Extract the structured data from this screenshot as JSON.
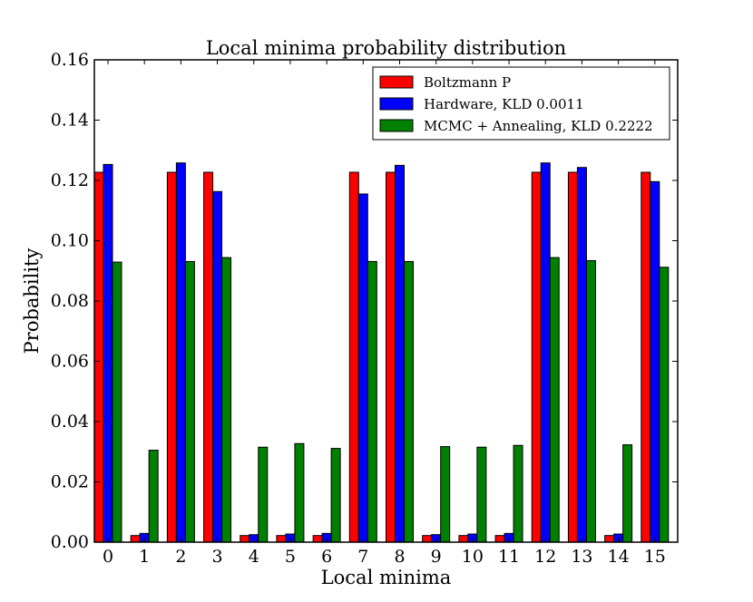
{
  "chart_data": {
    "type": "bar",
    "title": "Local minima probability distribution",
    "xlabel": "Local minima",
    "ylabel": "Probability",
    "ylim": [
      0,
      0.16
    ],
    "yticks": [
      "0.00",
      "0.02",
      "0.04",
      "0.06",
      "0.08",
      "0.10",
      "0.12",
      "0.14",
      "0.16"
    ],
    "categories": [
      "0",
      "1",
      "2",
      "3",
      "4",
      "5",
      "6",
      "7",
      "8",
      "9",
      "10",
      "11",
      "12",
      "13",
      "14",
      "15"
    ],
    "legend_position": "top-right",
    "series": [
      {
        "name": "Boltzmann P",
        "color": "#ff0000",
        "values": [
          0.1227,
          0.0022,
          0.1227,
          0.1227,
          0.0022,
          0.0022,
          0.0022,
          0.1227,
          0.1227,
          0.0022,
          0.0022,
          0.0022,
          0.1227,
          0.1227,
          0.0022,
          0.1227
        ]
      },
      {
        "name": "Hardware, KLD 0.0011",
        "color": "#0000ff",
        "values": [
          0.1253,
          0.0029,
          0.1258,
          0.1163,
          0.0025,
          0.0027,
          0.0029,
          0.1155,
          0.125,
          0.0025,
          0.0027,
          0.0029,
          0.1258,
          0.1243,
          0.0027,
          0.1196
        ]
      },
      {
        "name": "MCMC + Annealing, KLD 0.2222",
        "color": "#008000",
        "values": [
          0.0929,
          0.0305,
          0.0931,
          0.0944,
          0.0315,
          0.0327,
          0.0311,
          0.0931,
          0.0931,
          0.0317,
          0.0315,
          0.0321,
          0.0944,
          0.0934,
          0.0323,
          0.0912
        ]
      }
    ]
  }
}
